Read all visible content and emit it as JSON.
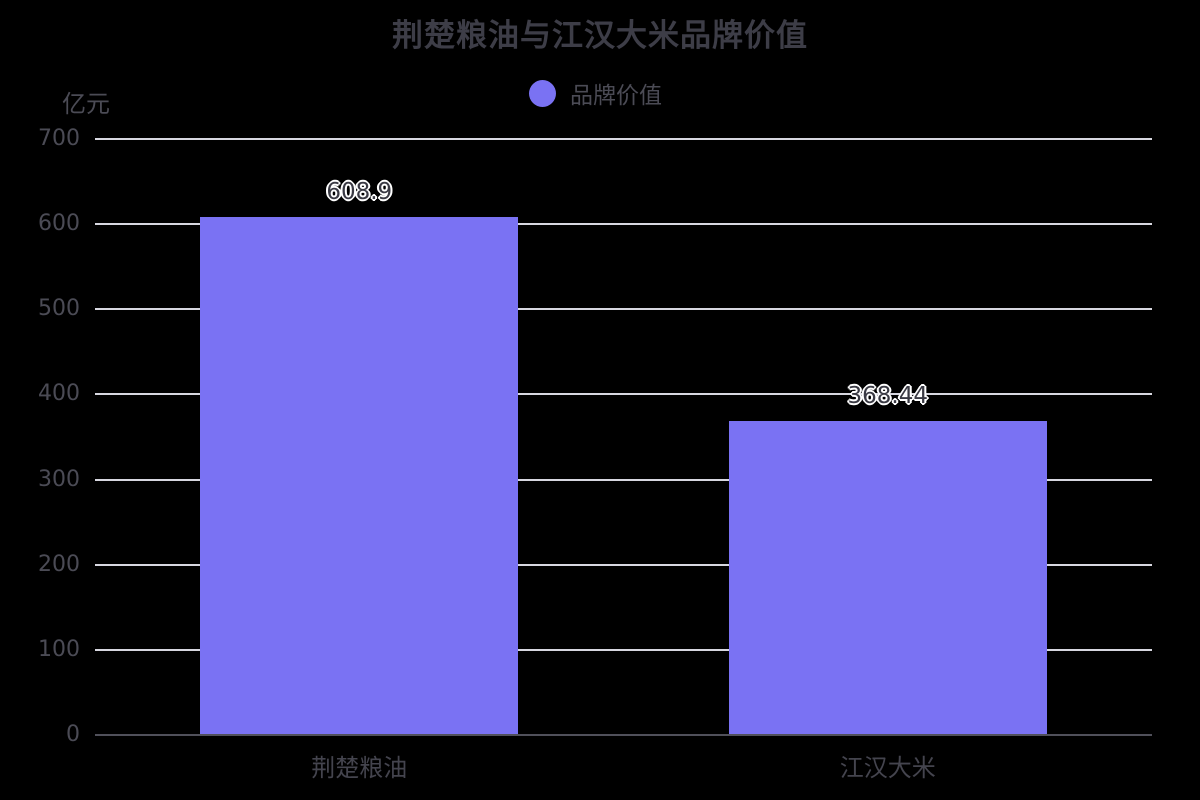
{
  "header": {
    "title": "荆楚粮油与江汉大米品牌价值"
  },
  "legend": {
    "items": [
      {
        "label": "品牌价值",
        "marker": "circle-icon",
        "color": "#7A72F3"
      }
    ]
  },
  "chart_data": {
    "type": "bar",
    "title": "荆楚粮油与江汉大米品牌价值",
    "categories": [
      "荆楚粮油",
      "江汉大米"
    ],
    "series": [
      {
        "name": "品牌价值",
        "values": [
          608.9,
          368.44
        ],
        "color": "#7A72F3"
      }
    ],
    "data_labels": [
      "608.9",
      "368.44"
    ],
    "xlabel": "",
    "ylabel": "亿元",
    "ylim": [
      0,
      700
    ],
    "yticks": [
      0,
      100,
      200,
      300,
      400,
      500,
      600,
      700
    ],
    "grid": true,
    "legend_position": "top-center"
  },
  "colors": {
    "background": "#000000",
    "bar": "#7A72F3",
    "grid": "#D7D7E0",
    "axis_line": "#50505A",
    "tick_text": "#4B4B55",
    "title_text": "#3D3D47",
    "category_text": "#44444E",
    "value_label_text": "#3A3A44",
    "value_label_halo": "#FFFFFF"
  }
}
